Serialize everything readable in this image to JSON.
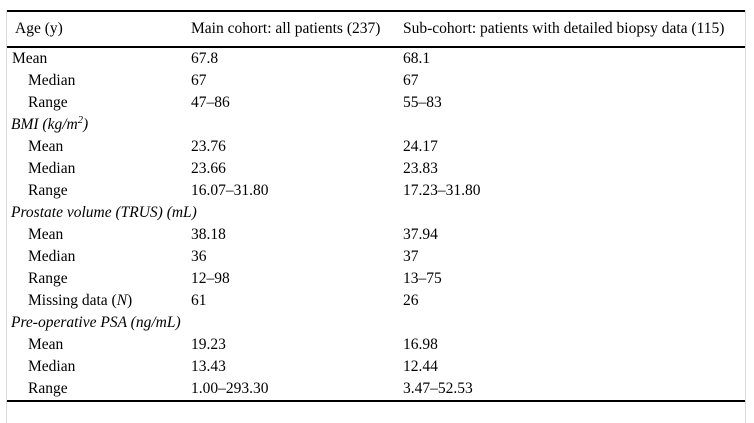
{
  "meta": {
    "background_color": "#ffffff",
    "text_color": "#000000",
    "rule_color": "#000000",
    "page_edge_color": "#d9d9d9"
  },
  "table": {
    "headers": [
      {
        "label": "Age (y)"
      },
      {
        "label": "Main cohort: all patients (237)"
      },
      {
        "label": "Sub-cohort: patients with detailed biopsy data (115)"
      }
    ],
    "rows": [
      {
        "type": "data",
        "indent": false,
        "label": "Mean",
        "main": "67.8",
        "sub": "68.1"
      },
      {
        "type": "data",
        "indent": true,
        "label": "Median",
        "main": "67",
        "sub": "67"
      },
      {
        "type": "data",
        "indent": true,
        "label": "Range",
        "main": "47–86",
        "sub": "55–83"
      },
      {
        "type": "section",
        "label_segments": [
          {
            "text": "BMI (kg/m"
          },
          {
            "text": "2",
            "sup": true
          },
          {
            "text": ")"
          }
        ],
        "main": "",
        "sub": ""
      },
      {
        "type": "data",
        "indent": true,
        "label": "Mean",
        "main": "23.76",
        "sub": "24.17"
      },
      {
        "type": "data",
        "indent": true,
        "label": "Median",
        "main": "23.66",
        "sub": "23.83"
      },
      {
        "type": "data",
        "indent": true,
        "label": "Range",
        "main": "16.07–31.80",
        "sub": "17.23–31.80"
      },
      {
        "type": "section",
        "label": "Prostate volume (TRUS) (mL)",
        "main": "",
        "sub": ""
      },
      {
        "type": "data",
        "indent": true,
        "label": "Mean",
        "main": "38.18",
        "sub": "37.94"
      },
      {
        "type": "data",
        "indent": true,
        "label": "Median",
        "main": "36",
        "sub": "37"
      },
      {
        "type": "data",
        "indent": true,
        "label": "Range",
        "main": "12–98",
        "sub": "13–75"
      },
      {
        "type": "data",
        "indent": true,
        "label_segments": [
          {
            "text": "Missing data ("
          },
          {
            "text": "N",
            "italic": true
          },
          {
            "text": ")"
          }
        ],
        "main": "61",
        "sub": "26"
      },
      {
        "type": "section",
        "label": "Pre-operative PSA (ng/mL)",
        "main": "",
        "sub": ""
      },
      {
        "type": "data",
        "indent": true,
        "label": "Mean",
        "main": "19.23",
        "sub": "16.98"
      },
      {
        "type": "data",
        "indent": true,
        "label": "Median",
        "main": "13.43",
        "sub": "12.44"
      },
      {
        "type": "data",
        "indent": true,
        "label": "Range",
        "main": "1.00–293.30",
        "sub": "3.47–52.53"
      }
    ]
  }
}
